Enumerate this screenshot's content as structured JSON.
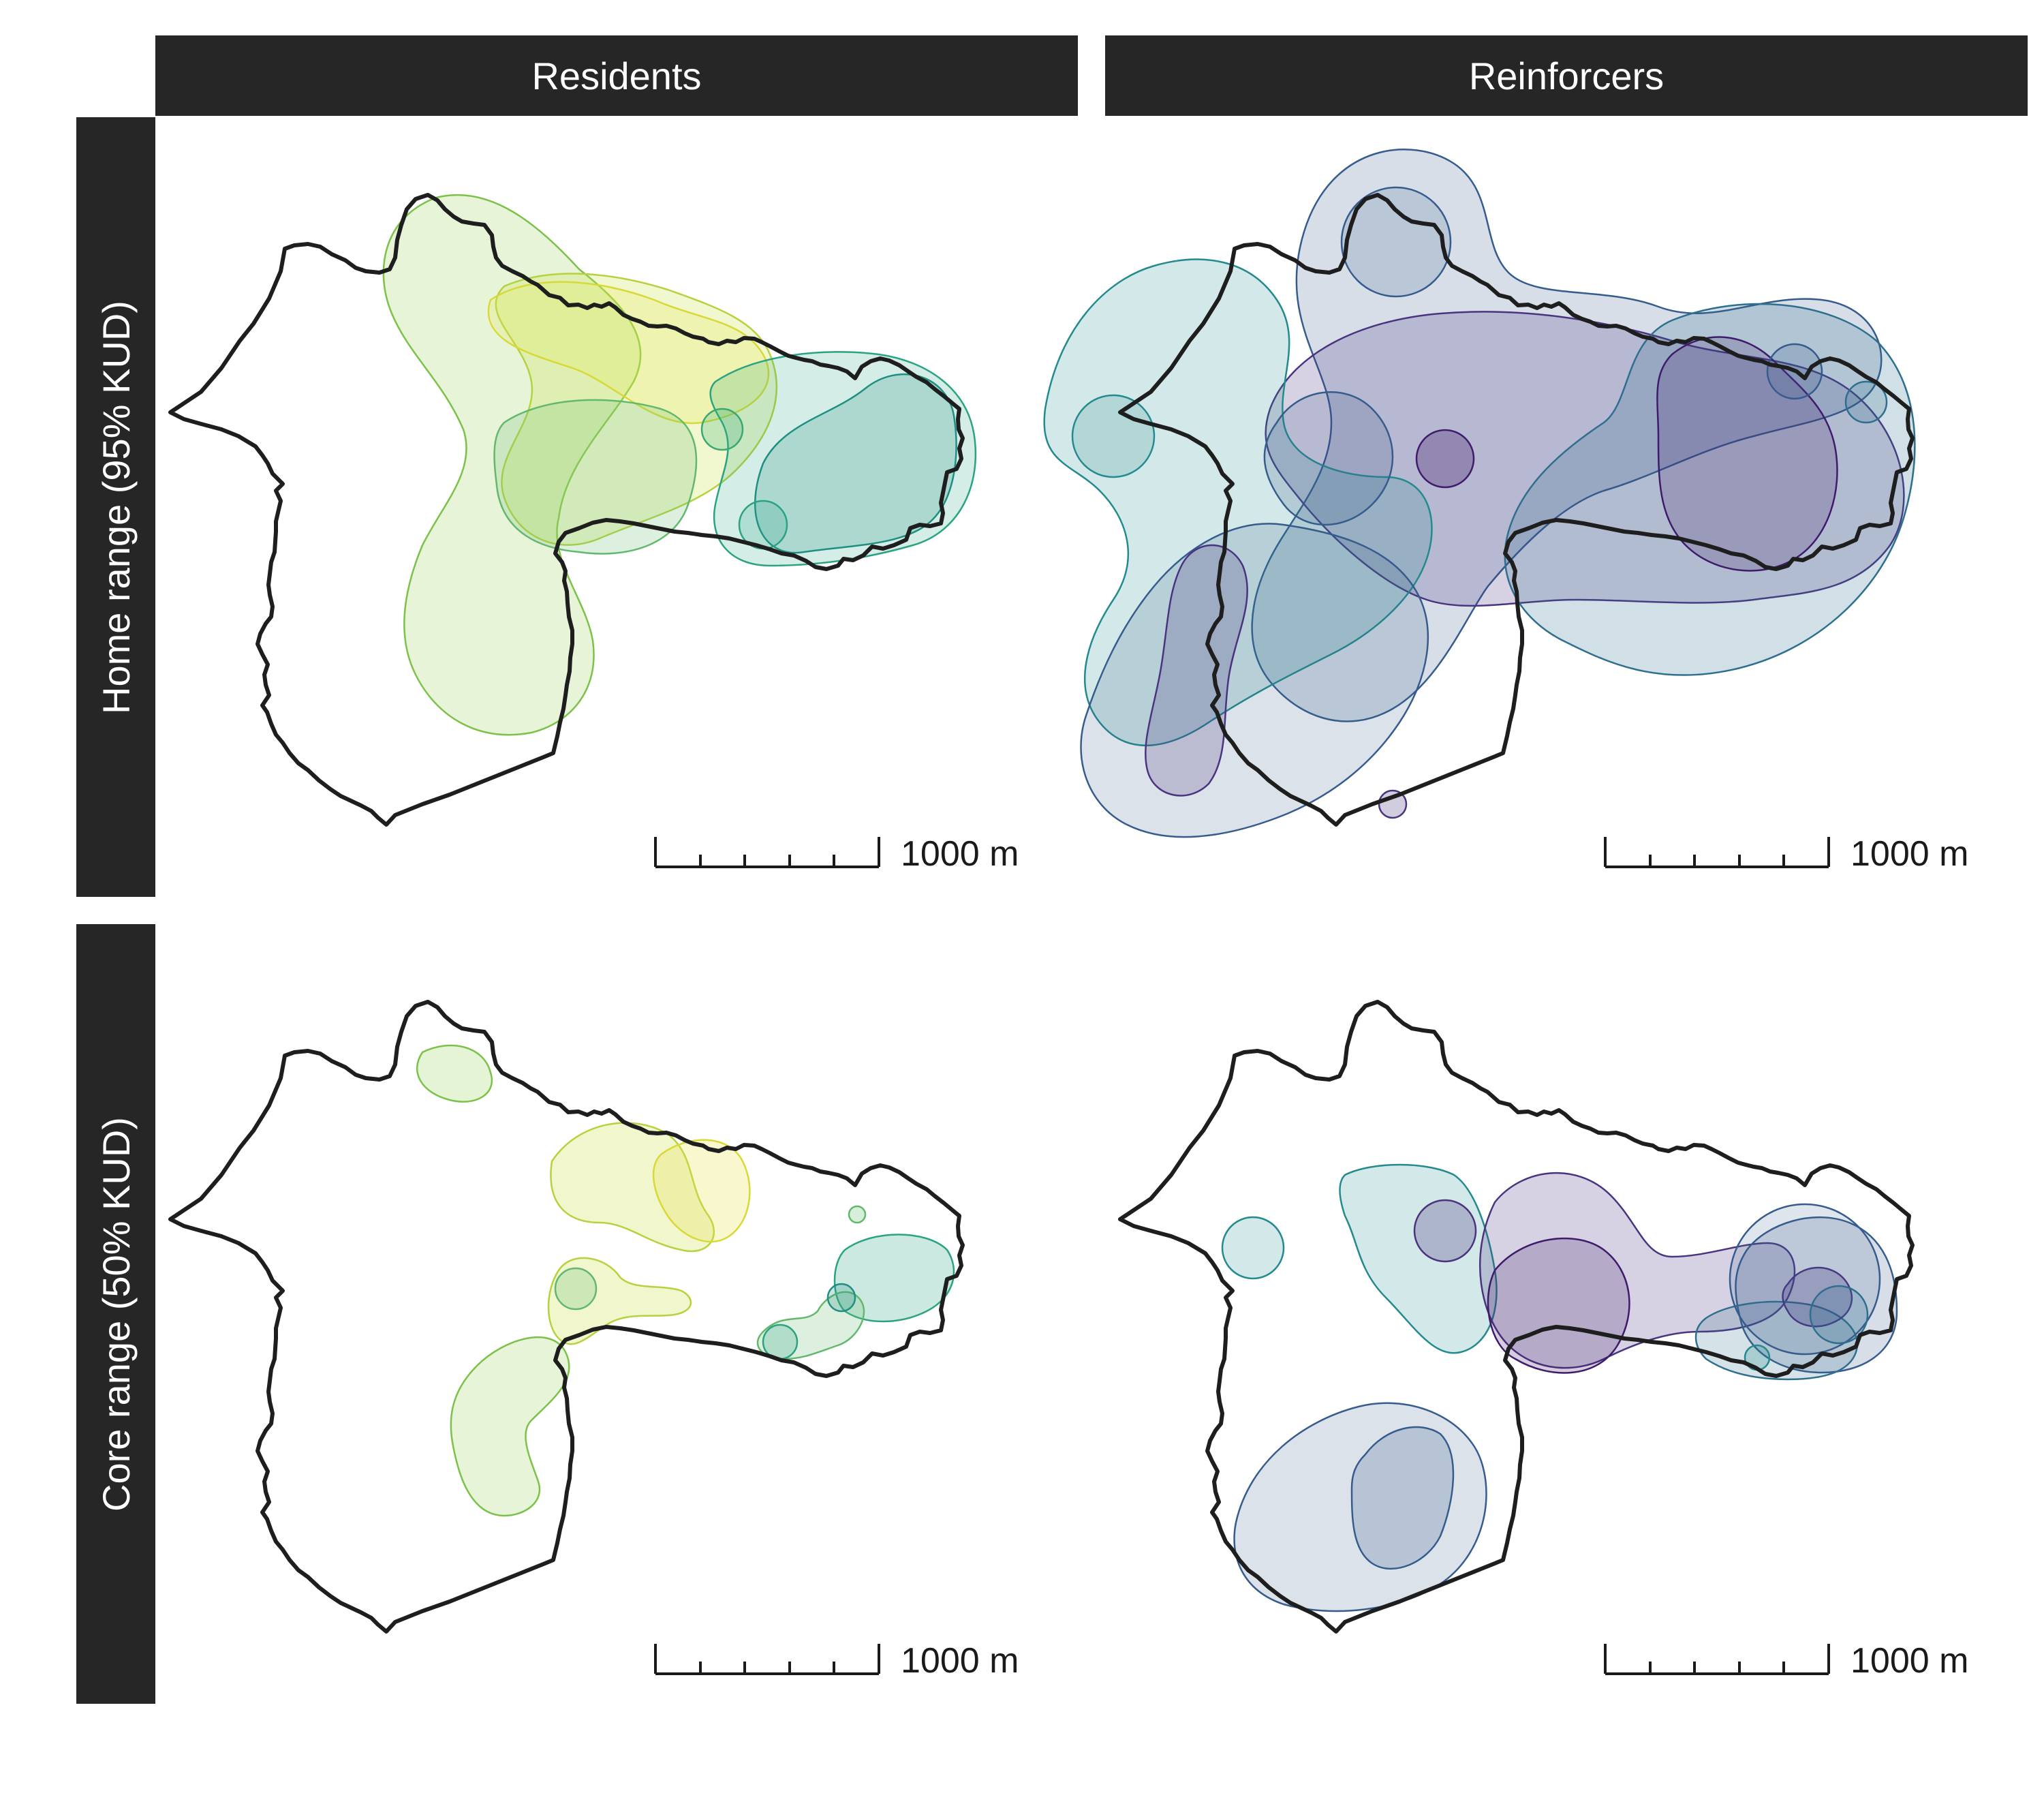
{
  "columns": [
    "Residents",
    "Reinforcers"
  ],
  "rows": [
    "Home range (95% KUD)",
    "Core range (50% KUD)"
  ],
  "scale_bar": {
    "label": "1000 m"
  },
  "colors": {
    "outline": "#1e1e1e",
    "strip_bg": "#262626",
    "strip_text": "#ffffff",
    "residents_palette": [
      "#9bd35b",
      "#c7de3f",
      "#e5e44a",
      "#6fc17a",
      "#2aa382",
      "#1f8f82"
    ],
    "reinforcers_palette": [
      "#3f1b6b",
      "#4a3480",
      "#365c8d",
      "#2f6f8e",
      "#238a8d",
      "#2c7f6e"
    ]
  },
  "panels": [
    {
      "column": "Residents",
      "row": "Home range (95% KUD)"
    },
    {
      "column": "Reinforcers",
      "row": "Home range (95% KUD)"
    },
    {
      "column": "Residents",
      "row": "Core range (50% KUD)"
    },
    {
      "column": "Reinforcers",
      "row": "Core range (50% KUD)"
    }
  ]
}
